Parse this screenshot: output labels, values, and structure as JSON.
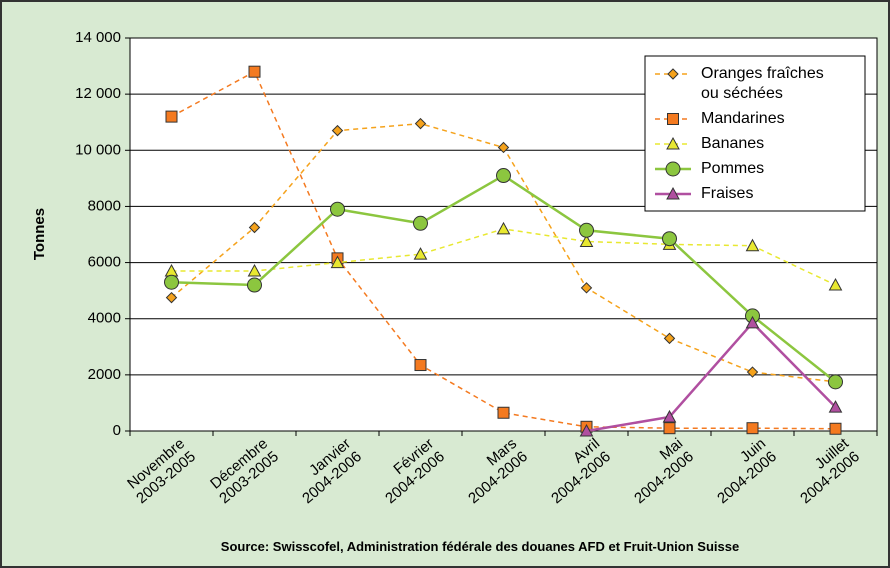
{
  "chart_data": {
    "type": "line",
    "y_label": "Tonnes",
    "source": "Source: Swisscofel, Administration fédérale des douanes AFD et Fruit-Union Suisse",
    "categories": [
      "Novembre\n2003-2005",
      "Décembre\n2003-2005",
      "Janvier\n2004-2006",
      "Février\n2004-2006",
      "Mars\n2004-2006",
      "Avril\n2004-2006",
      "Mai\n2004-2006",
      "Juin\n2004-2006",
      "Juillet\n2004-2006"
    ],
    "series": [
      {
        "name": "Oranges fraîches\nou séchées",
        "color": "#f5a21b",
        "marker": "diamond",
        "dashed": true,
        "values": [
          4750,
          7250,
          10700,
          10950,
          10100,
          5100,
          3300,
          2100,
          1750
        ]
      },
      {
        "name": "Mandarines",
        "color": "#f47a20",
        "marker": "square",
        "dashed": true,
        "values": [
          11200,
          12800,
          6150,
          2350,
          650,
          150,
          100,
          100,
          80
        ]
      },
      {
        "name": "Bananes",
        "color": "#e8e830",
        "marker": "triangle",
        "dashed": true,
        "values": [
          5700,
          5700,
          6000,
          6300,
          7200,
          6750,
          6650,
          6600,
          5200
        ]
      },
      {
        "name": "Pommes",
        "color": "#8cc63f",
        "marker": "circle",
        "dashed": false,
        "values": [
          5300,
          5200,
          7900,
          7400,
          9100,
          7150,
          6850,
          4100,
          1750
        ]
      },
      {
        "name": "Fraises",
        "color": "#b04fa0",
        "marker": "triangle",
        "dashed": false,
        "values": [
          null,
          null,
          null,
          null,
          null,
          0,
          500,
          3850,
          850
        ]
      }
    ],
    "ylim": [
      0,
      14000
    ],
    "yticks": [
      0,
      2000,
      4000,
      6000,
      8000,
      {
        "value": 10000,
        "label": "10 000"
      },
      {
        "value": 12000,
        "label": "12 000"
      },
      {
        "value": 14000,
        "label": "14 000"
      }
    ],
    "grid": true,
    "legend": "upper right"
  }
}
